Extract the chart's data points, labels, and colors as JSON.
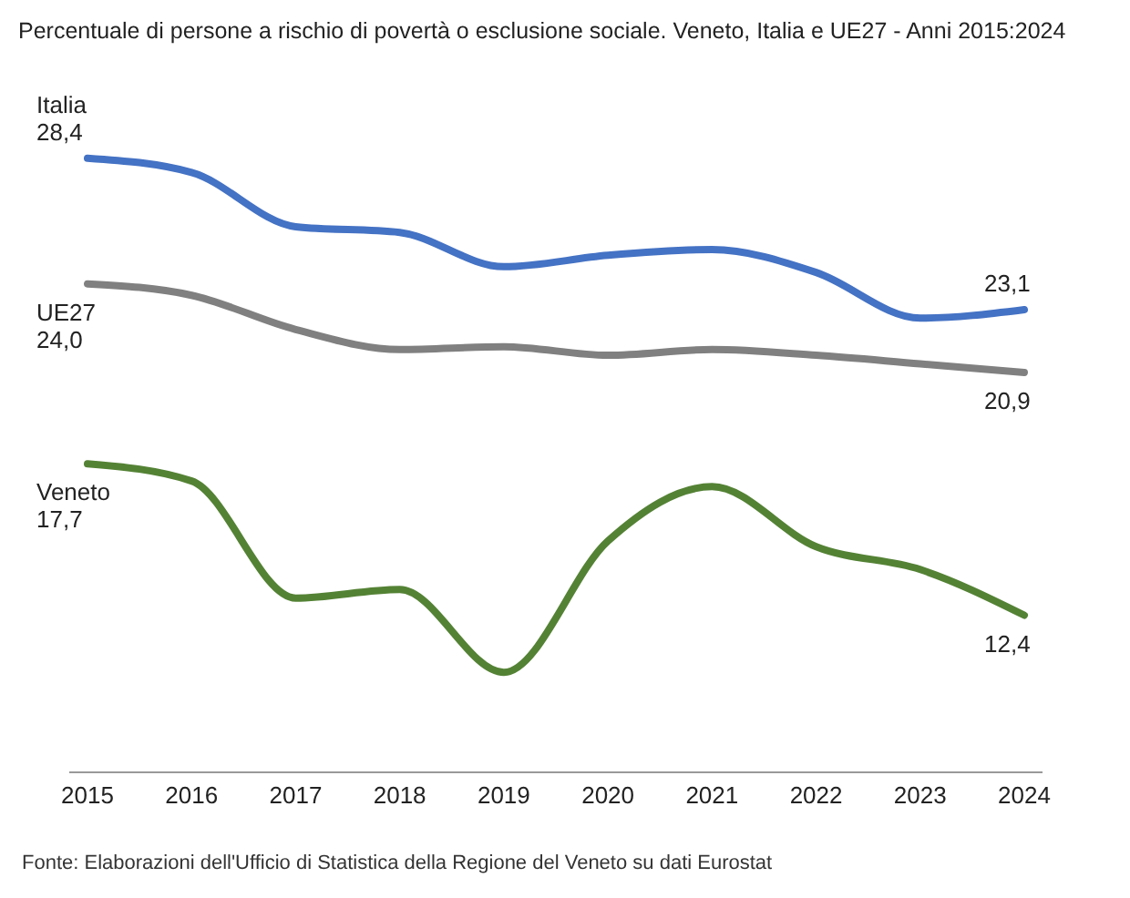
{
  "chart_data": {
    "type": "line",
    "title": "Percentuale di persone a rischio di povertà o esclusione sociale. Veneto, Italia e UE27 - Anni 2015:2024",
    "categories": [
      "2015",
      "2016",
      "2017",
      "2018",
      "2019",
      "2020",
      "2021",
      "2022",
      "2023",
      "2024"
    ],
    "series": [
      {
        "name": "Italia",
        "color": "#4472c4",
        "values": [
          28.4,
          27.9,
          26.0,
          25.8,
          24.6,
          25.0,
          25.2,
          24.4,
          22.8,
          23.1
        ],
        "value_labels": [
          "28,4",
          null,
          null,
          null,
          null,
          null,
          null,
          null,
          null,
          "23,1"
        ]
      },
      {
        "name": "UE27",
        "color": "#808080",
        "values": [
          24.0,
          23.6,
          22.4,
          21.7,
          21.8,
          21.5,
          21.7,
          21.5,
          21.2,
          20.9
        ],
        "value_labels": [
          "24,0",
          null,
          null,
          null,
          null,
          null,
          null,
          null,
          null,
          "20,9"
        ]
      },
      {
        "name": "Veneto",
        "color": "#548235",
        "values": [
          17.7,
          17.1,
          13.0,
          13.3,
          10.4,
          15.0,
          16.9,
          14.8,
          14.0,
          12.4
        ],
        "value_labels": [
          "17,7",
          null,
          null,
          null,
          null,
          null,
          null,
          null,
          null,
          "12,4"
        ]
      }
    ],
    "annotations": [
      "Fonte: Elaborazioni dell'Ufficio di Statistica della Regione del Veneto su dati Eurostat"
    ],
    "grid": false,
    "legend": false,
    "marker": "none",
    "line_style": "solid"
  }
}
